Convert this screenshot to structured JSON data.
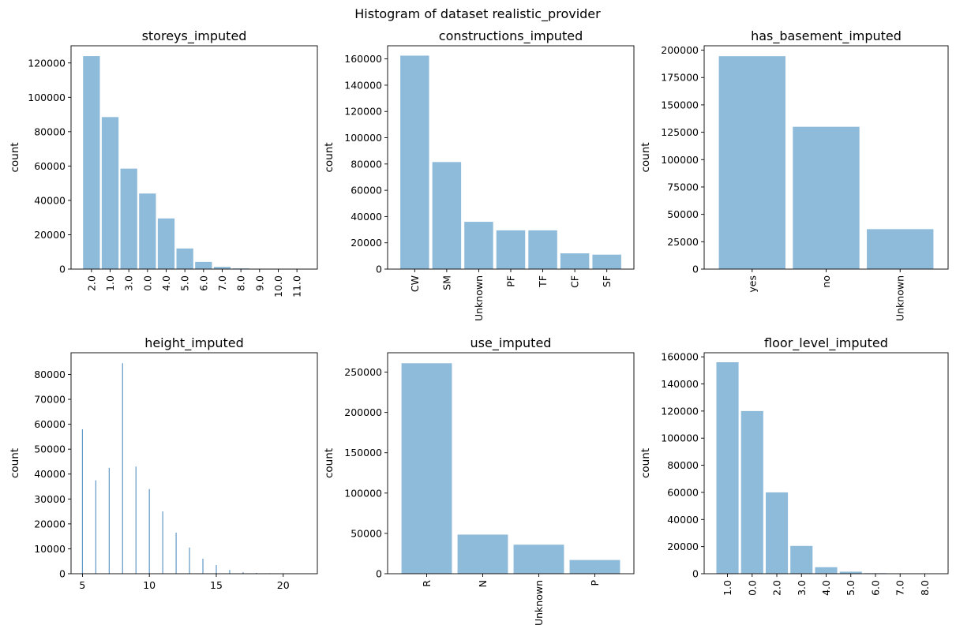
{
  "figure": {
    "suptitle": "Histogram of dataset realistic_provider"
  },
  "colors": {
    "bar": "#8fbbda",
    "axis": "#000000"
  },
  "chart_data": [
    {
      "type": "bar",
      "title": "storeys_imputed",
      "ylabel": "count",
      "xlabel": "",
      "categories": [
        "2.0",
        "1.0",
        "3.0",
        "0.0",
        "4.0",
        "5.0",
        "6.0",
        "7.0",
        "8.0",
        "9.0",
        "10.0",
        "11.0"
      ],
      "values": [
        124000,
        88500,
        58500,
        44000,
        29500,
        12000,
        4200,
        1300,
        400,
        200,
        100,
        50
      ],
      "ylim": [
        0,
        130000
      ],
      "yticks": [
        0,
        20000,
        40000,
        60000,
        80000,
        100000,
        120000
      ],
      "xtick_rotation": 90
    },
    {
      "type": "bar",
      "title": "constructions_imputed",
      "ylabel": "count",
      "xlabel": "",
      "categories": [
        "CW",
        "SM",
        "Unknown",
        "PF",
        "TF",
        "CF",
        "SF"
      ],
      "values": [
        162500,
        81500,
        36000,
        29500,
        29500,
        12000,
        11000
      ],
      "ylim": [
        0,
        170000
      ],
      "yticks": [
        0,
        20000,
        40000,
        60000,
        80000,
        100000,
        120000,
        140000,
        160000
      ],
      "xtick_rotation": 90
    },
    {
      "type": "bar",
      "title": "has_basement_imputed",
      "ylabel": "count",
      "xlabel": "",
      "categories": [
        "yes",
        "no",
        "Unknown"
      ],
      "values": [
        194500,
        130000,
        36500
      ],
      "ylim": [
        0,
        204000
      ],
      "yticks": [
        0,
        25000,
        50000,
        75000,
        100000,
        125000,
        150000,
        175000,
        200000
      ],
      "xtick_rotation": 90
    },
    {
      "type": "histogram",
      "title": "height_imputed",
      "ylabel": "count",
      "xlabel": "",
      "x": [
        5,
        6,
        7,
        8,
        9,
        10,
        11,
        12,
        13,
        14,
        15,
        16,
        17,
        18,
        19,
        20,
        21
      ],
      "values": [
        58000,
        37500,
        42500,
        84500,
        43000,
        34000,
        25000,
        16500,
        10500,
        6000,
        3500,
        1500,
        600,
        300,
        200,
        100,
        50
      ],
      "xlim": [
        4.15,
        22.55
      ],
      "ylim": [
        0,
        88700
      ],
      "xticks": [
        5,
        10,
        15,
        20
      ],
      "yticks": [
        0,
        10000,
        20000,
        30000,
        40000,
        50000,
        60000,
        70000,
        80000
      ],
      "xtick_rotation": 0
    },
    {
      "type": "bar",
      "title": "use_imputed",
      "ylabel": "count",
      "xlabel": "",
      "categories": [
        "R",
        "N",
        "Unknown",
        "P"
      ],
      "values": [
        261000,
        48500,
        36000,
        17000
      ],
      "ylim": [
        0,
        274000
      ],
      "yticks": [
        0,
        50000,
        100000,
        150000,
        200000,
        250000
      ],
      "xtick_rotation": 90
    },
    {
      "type": "bar",
      "title": "floor_level_imputed",
      "ylabel": "count",
      "xlabel": "",
      "categories": [
        "1.0",
        "0.0",
        "2.0",
        "3.0",
        "4.0",
        "5.0",
        "6.0",
        "7.0",
        "8.0"
      ],
      "values": [
        156000,
        120000,
        60000,
        20500,
        4800,
        1500,
        400,
        150,
        50
      ],
      "ylim": [
        0,
        163000
      ],
      "yticks": [
        0,
        20000,
        40000,
        60000,
        80000,
        100000,
        120000,
        140000,
        160000
      ],
      "xtick_rotation": 90
    }
  ]
}
